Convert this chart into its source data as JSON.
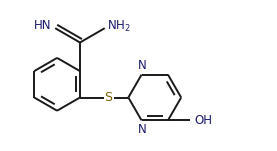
{
  "bg_color": "#ffffff",
  "line_color": "#1a1a1a",
  "heteroatom_color": "#1a1a6e",
  "sulfur_color": "#7a6000",
  "bond_lw": 1.4,
  "font_size": 8.5,
  "fig_width": 2.77,
  "fig_height": 1.51,
  "xlim": [
    0.0,
    5.8
  ],
  "ylim": [
    -0.2,
    3.2
  ]
}
